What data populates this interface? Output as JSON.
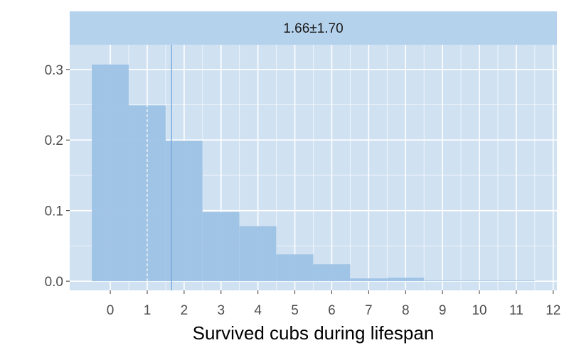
{
  "chart_data": {
    "type": "bar",
    "strip_label": "1.66±1.70",
    "xlabel": "Survived cubs during lifespan",
    "ylabel": "",
    "x_ticks": [
      "0",
      "1",
      "2",
      "3",
      "4",
      "5",
      "6",
      "7",
      "8",
      "9",
      "10",
      "11",
      "12"
    ],
    "y_ticks": [
      "0.0",
      "0.1",
      "0.2",
      "0.3"
    ],
    "xlim": [
      -1.1,
      12.1
    ],
    "ylim": [
      -0.013,
      0.335
    ],
    "categories": [
      0,
      1,
      2,
      3,
      4,
      5,
      6,
      7,
      8,
      9,
      10,
      11
    ],
    "values": [
      0.307,
      0.249,
      0.199,
      0.098,
      0.078,
      0.038,
      0.024,
      0.004,
      0.005,
      0.001,
      0.001,
      0.001
    ],
    "bin_width": 1,
    "vlines": {
      "median": 1,
      "mean": 1.66
    },
    "grid": true,
    "colors": {
      "panel_background": "#d0e1f2",
      "strip_background": "#b5d2ec",
      "grid": "#ffffff",
      "bar_fill": "#9dc2e5",
      "mean_line": "#6fa6da",
      "median_line": "#ffffff",
      "axis_text": "#4d4d4d",
      "tick": "#333333"
    }
  }
}
